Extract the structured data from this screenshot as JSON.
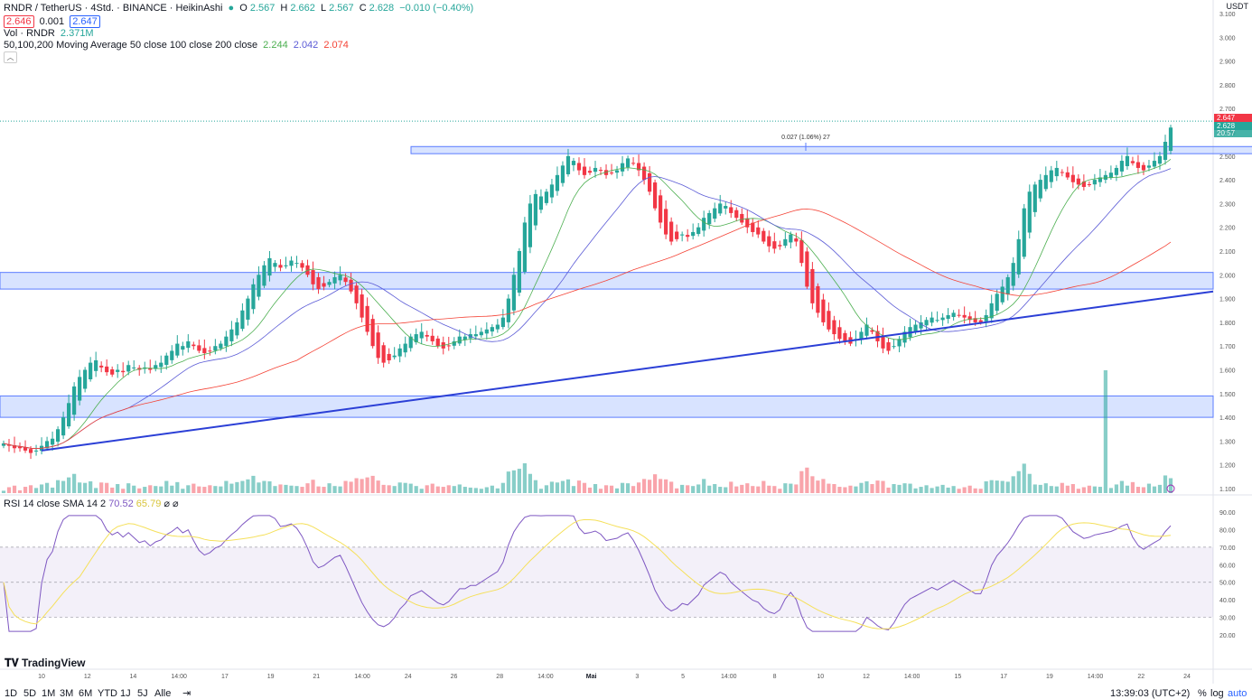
{
  "header": {
    "symbol": "RNDR / TetherUS · 4Std. · BINANCE · HeikinAshi",
    "o_label": "O",
    "o": "2.567",
    "h_label": "H",
    "h": "2.662",
    "l_label": "L",
    "l": "2.567",
    "c_label": "C",
    "c": "2.628",
    "change": "−0.010 (−0.40%)",
    "bid": "2.646",
    "spread": "0.001",
    "ask": "2.647"
  },
  "volume_legend": {
    "name": "Vol · RNDR",
    "value": "2.371M"
  },
  "ma_legend": {
    "name": "50,100,200 Moving Average 50 close 100 close 200 close",
    "v1": "2.244",
    "v2": "2.042",
    "v3": "2.074"
  },
  "rsi_legend": {
    "name": "RSI 14 close SMA 14 2",
    "v1": "70.52",
    "v2": "65.79",
    "icons": "⌀ ⌀"
  },
  "measure_label": "0.027 (1.06%) 27",
  "currency": "USDT",
  "price_axis": [
    "3.100",
    "3.000",
    "2.900",
    "2.800",
    "2.700",
    "2.600",
    "2.500",
    "2.400",
    "2.300",
    "2.200",
    "2.100",
    "2.000",
    "1.900",
    "1.800",
    "1.700",
    "1.600",
    "1.500",
    "1.400",
    "1.300",
    "1.200",
    "1.100"
  ],
  "rsi_axis": [
    "90.00",
    "80.00",
    "70.00",
    "60.00",
    "50.00",
    "40.00",
    "30.00",
    "20.00"
  ],
  "price_tags": {
    "last": "2.647",
    "close": "2.628",
    "countdown": "20:57"
  },
  "time_axis": [
    "10",
    "12",
    "14",
    "14:00",
    "17",
    "19",
    "21",
    "14:00",
    "24",
    "26",
    "28",
    "14:00",
    "Mai",
    "3",
    "5",
    "14:00",
    "8",
    "10",
    "12",
    "14:00",
    "15",
    "17",
    "19",
    "14:00",
    "22",
    "24"
  ],
  "bottom": {
    "ranges": [
      "1D",
      "5D",
      "1M",
      "3M",
      "6M",
      "YTD",
      "1J",
      "5J",
      "Alle"
    ],
    "clock": "13:39:03 (UTC+2)",
    "pct": "%",
    "log": "log",
    "auto": "auto"
  },
  "logo": "TradingView",
  "colors": {
    "up": "#26a69a",
    "down": "#f23645",
    "ma50": "#4caf50",
    "ma100": "#5b5bd6",
    "ma200": "#f44336",
    "trend": "#2b3fd6",
    "rsi": "#7e57c2",
    "rsi_sma": "#f5e05a",
    "zone": "rgba(41,98,255,0.18)"
  },
  "chart_data": {
    "type": "candlestick",
    "chart_style": "HeikinAshi",
    "interval": "4h",
    "ylim": [
      1.1,
      3.1
    ],
    "rsi_ylim": [
      20,
      90
    ],
    "candles_close": [
      1.29,
      1.28,
      1.27,
      1.27,
      1.26,
      1.25,
      1.26,
      1.28,
      1.3,
      1.31,
      1.35,
      1.4,
      1.46,
      1.53,
      1.57,
      1.6,
      1.63,
      1.64,
      1.61,
      1.59,
      1.58,
      1.6,
      1.59,
      1.62,
      1.61,
      1.6,
      1.61,
      1.6,
      1.62,
      1.63,
      1.66,
      1.68,
      1.71,
      1.7,
      1.72,
      1.7,
      1.68,
      1.67,
      1.68,
      1.7,
      1.71,
      1.74,
      1.77,
      1.8,
      1.85,
      1.9,
      1.96,
      2.0,
      2.04,
      2.07,
      2.05,
      2.03,
      2.04,
      2.06,
      2.05,
      2.03,
      2.0,
      1.96,
      1.94,
      1.95,
      1.97,
      1.99,
      2.0,
      1.97,
      1.93,
      1.88,
      1.82,
      1.76,
      1.7,
      1.65,
      1.63,
      1.64,
      1.66,
      1.69,
      1.71,
      1.74,
      1.75,
      1.76,
      1.74,
      1.72,
      1.7,
      1.69,
      1.7,
      1.72,
      1.74,
      1.74,
      1.75,
      1.75,
      1.76,
      1.77,
      1.78,
      1.79,
      1.82,
      1.9,
      2.0,
      2.1,
      2.22,
      2.3,
      2.34,
      2.33,
      2.35,
      2.38,
      2.42,
      2.46,
      2.5,
      2.48,
      2.44,
      2.42,
      2.43,
      2.45,
      2.44,
      2.42,
      2.43,
      2.44,
      2.47,
      2.49,
      2.47,
      2.44,
      2.4,
      2.35,
      2.28,
      2.22,
      2.17,
      2.14,
      2.15,
      2.17,
      2.16,
      2.18,
      2.2,
      2.24,
      2.26,
      2.28,
      2.3,
      2.29,
      2.26,
      2.24,
      2.22,
      2.2,
      2.18,
      2.17,
      2.14,
      2.12,
      2.11,
      2.12,
      2.15,
      2.17,
      2.14,
      2.05,
      1.95,
      1.88,
      1.84,
      1.8,
      1.77,
      1.75,
      1.73,
      1.72,
      1.71,
      1.73,
      1.76,
      1.79,
      1.76,
      1.72,
      1.69,
      1.68,
      1.7,
      1.73,
      1.76,
      1.78,
      1.79,
      1.8,
      1.81,
      1.82,
      1.81,
      1.82,
      1.83,
      1.84,
      1.83,
      1.82,
      1.81,
      1.8,
      1.8,
      1.83,
      1.88,
      1.92,
      1.95,
      1.99,
      2.05,
      2.15,
      2.28,
      2.35,
      2.38,
      2.4,
      2.42,
      2.44,
      2.45,
      2.43,
      2.41,
      2.39,
      2.38,
      2.37,
      2.38,
      2.4,
      2.41,
      2.42,
      2.43,
      2.45,
      2.48,
      2.5,
      2.47,
      2.45,
      2.44,
      2.46,
      2.48,
      2.5,
      2.56,
      2.62
    ],
    "volume_peak": "2.371M",
    "moving_averages": [
      {
        "name": "50",
        "value": 2.244
      },
      {
        "name": "100",
        "value": 2.042
      },
      {
        "name": "200",
        "value": 2.074
      }
    ],
    "zones": [
      {
        "from": 2.51,
        "to": 2.54
      },
      {
        "from": 1.94,
        "to": 2.01
      },
      {
        "from": 1.4,
        "to": 1.49
      }
    ],
    "rsi_last": 70.52,
    "rsi_sma_last": 65.79
  }
}
